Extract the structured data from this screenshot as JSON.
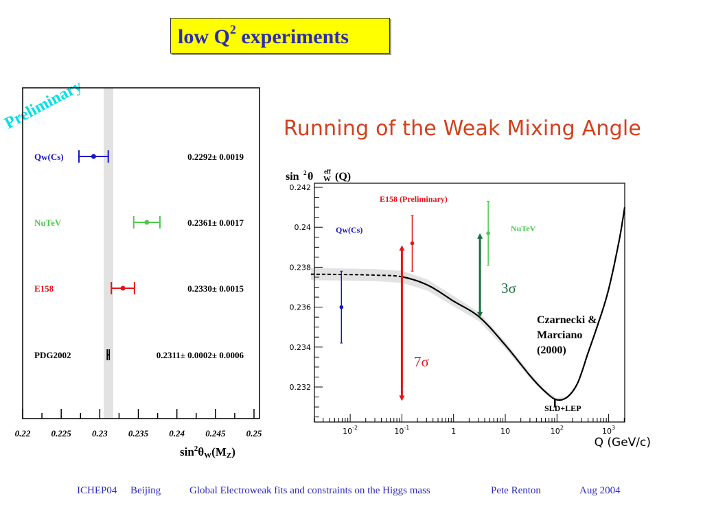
{
  "slide": {
    "title_prefix": "low Q",
    "title_sup": "2",
    "title_suffix": " experiments",
    "subtitle": "Running of the Weak Mixing Angle",
    "watermark": "Preliminary"
  },
  "footer": {
    "conference": "ICHEP04",
    "location": "Beijing",
    "talk": "Global Electroweak fits and constraints on the Higgs mass",
    "author": "Pete Renton",
    "date": "Aug 2004"
  },
  "colors": {
    "title_bg": "#ffff00",
    "title_fg": "#2b2bb8",
    "subtitle": "#d2401c",
    "blue": "#1414c8",
    "green": "#50c850",
    "red": "#e61414",
    "dark_green": "#1a6e3c",
    "band": "#e2e2e2"
  },
  "chart_data": [
    {
      "type": "scatter",
      "title": "",
      "xlabel": "sin²θW(MZ)",
      "xlim": [
        0.22,
        0.25
      ],
      "xticks": [
        "0.22",
        "0.225",
        "0.23",
        "0.235",
        "0.24",
        "0.245",
        "0.25"
      ],
      "band": {
        "from": 0.2305,
        "to": 0.23175
      },
      "series": [
        {
          "name": "Qw(Cs)",
          "value": 0.2292,
          "error": 0.0019,
          "label": "0.2292± 0.0019",
          "color": "#1414c8"
        },
        {
          "name": "NuTeV",
          "value": 0.2361,
          "error": 0.0017,
          "label": "0.2361± 0.0017",
          "color": "#50c850"
        },
        {
          "name": "E158",
          "value": 0.233,
          "error": 0.0015,
          "label": "0.2330± 0.0015",
          "color": "#e61414"
        },
        {
          "name": "PDG2002",
          "value": 0.2311,
          "error": 0.0002,
          "error_sys": 0.0006,
          "label": "0.2311± 0.0002± 0.0006",
          "color": "#000000"
        }
      ]
    },
    {
      "type": "line",
      "title": "",
      "ylabel": "sin²θ eff W (Q)",
      "ylabel_main": "sin",
      "ylabel_sup": "2",
      "ylabel_theta": "θ",
      "ylabel_eff": "eff",
      "ylabel_w": "W",
      "ylabel_q": "(Q)",
      "xlabel": "Q (GeV/c)",
      "xscale": "log",
      "xlim_log10": [
        -2.76,
        3.31
      ],
      "ylim": [
        0.23025,
        0.2422
      ],
      "yticks": [
        "0.232",
        "0.234",
        "0.236",
        "0.238",
        "0.24",
        "0.242"
      ],
      "xticks": [
        {
          "base": "10",
          "exp": "-2"
        },
        {
          "base": "10",
          "exp": "-1"
        },
        {
          "base": "1",
          "exp": ""
        },
        {
          "base": "10",
          "exp": ""
        },
        {
          "base": "10",
          "exp": "2"
        },
        {
          "base": "10",
          "exp": "3"
        }
      ],
      "curve": {
        "name": "Czarnecki & Marciano (2000)",
        "dashed_below_log10Q": -1,
        "points_log10Q_value": [
          [
            -2.76,
            0.23765
          ],
          [
            -2,
            0.23763
          ],
          [
            -1.5,
            0.2376
          ],
          [
            -1,
            0.23752
          ],
          [
            -0.5,
            0.2371
          ],
          [
            0,
            0.2363
          ],
          [
            0.5,
            0.2355
          ],
          [
            1,
            0.2341
          ],
          [
            1.5,
            0.2325
          ],
          [
            1.8,
            0.2317
          ],
          [
            2,
            0.23136
          ],
          [
            2.2,
            0.2315
          ],
          [
            2.4,
            0.2322
          ],
          [
            2.6,
            0.2337
          ],
          [
            2.8,
            0.2352
          ],
          [
            3,
            0.2369
          ],
          [
            3.2,
            0.2393
          ],
          [
            3.31,
            0.241
          ]
        ],
        "band_halfwidth": [
          0.0003,
          0.0003,
          0.0003,
          0.0003,
          0.00028,
          0.00026,
          0.00022,
          0.00018,
          0.00014,
          0.0001,
          8e-05,
          6e-05,
          4e-05,
          3e-05,
          2e-05,
          2e-05,
          2e-05,
          2e-05
        ]
      },
      "points": [
        {
          "name": "Qw(Cs)",
          "log10Q": -2.17,
          "value": 0.236,
          "error": 0.0018,
          "color": "#1414c8"
        },
        {
          "name": "E158 (Preliminary)",
          "log10Q": -0.8,
          "value": 0.2392,
          "error": 0.0014,
          "color": "#e61414"
        },
        {
          "name": "NuTeV",
          "log10Q": 0.67,
          "value": 0.2397,
          "error": 0.0016,
          "color": "#50c850"
        },
        {
          "name": "SLD+LEP",
          "log10Q": 1.96,
          "value": 0.2312,
          "error": 0.0002,
          "color": "#000000"
        }
      ],
      "arrows": [
        {
          "label": "7σ",
          "log10Q": -1.0,
          "from": 0.2391,
          "to": 0.2313,
          "color": "#e61414"
        },
        {
          "label": "3σ",
          "log10Q": 0.51,
          "from": 0.2397,
          "to": 0.23548,
          "color": "#1a6e3c"
        }
      ],
      "annotations": {
        "qw": "Qw(Cs)",
        "e158": "E158 (Preliminary)",
        "nutev": "NuTeV",
        "sigma7": "7σ",
        "sigma3": "3σ",
        "theory_line1": "Czarnecki &",
        "theory_line2": "Marciano",
        "theory_line3": "(2000)",
        "sld": "SLD+LEP"
      }
    }
  ]
}
